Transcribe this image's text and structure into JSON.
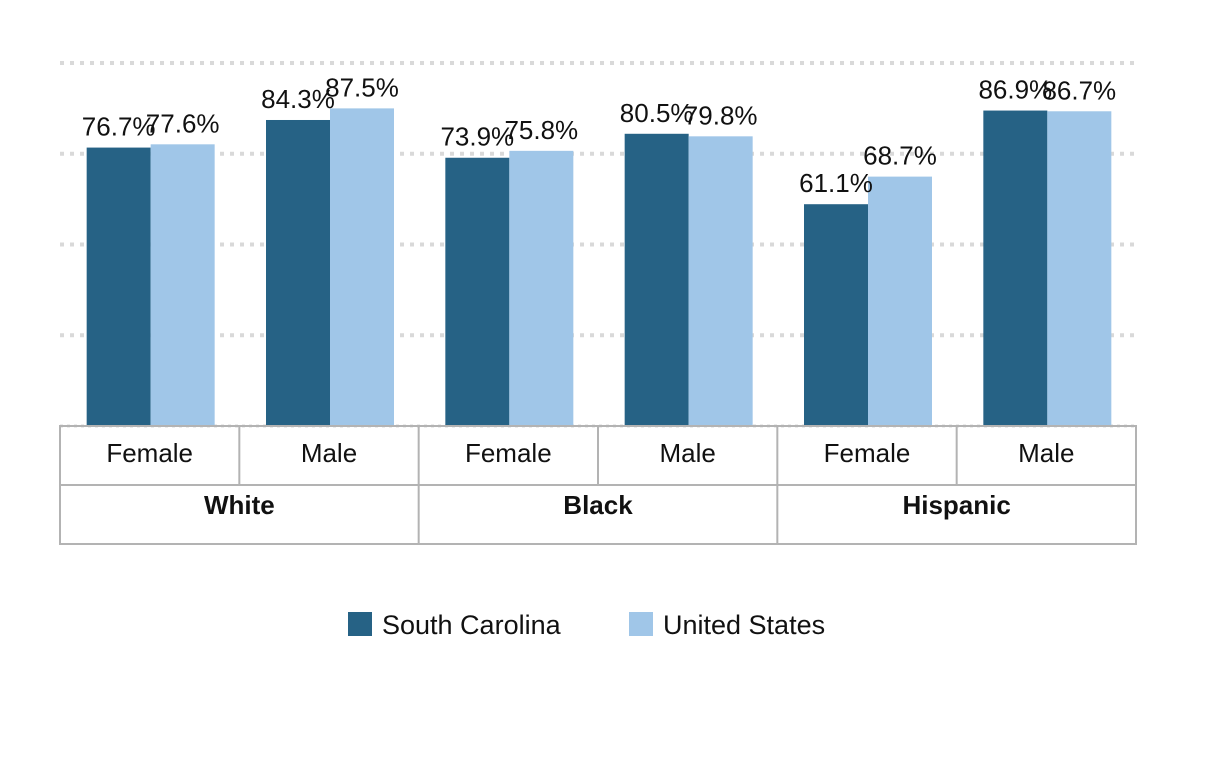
{
  "chart_data": {
    "type": "bar",
    "groups": [
      {
        "label": "White",
        "categories": [
          "Female",
          "Male"
        ]
      },
      {
        "label": "Black",
        "categories": [
          "Female",
          "Male"
        ]
      },
      {
        "label": "Hispanic",
        "categories": [
          "Female",
          "Male"
        ]
      }
    ],
    "categories": [
      "Female",
      "Male",
      "Female",
      "Male",
      "Female",
      "Male"
    ],
    "series": [
      {
        "name": "South Carolina",
        "color": "#266285",
        "values": [
          76.7,
          84.3,
          73.9,
          80.5,
          61.1,
          86.9
        ]
      },
      {
        "name": "United States",
        "color": "#a0c6e8",
        "values": [
          77.6,
          87.5,
          75.8,
          79.8,
          68.7,
          86.7
        ]
      }
    ],
    "value_labels": {
      "South Carolina": [
        "76.7%",
        "84.3%",
        "73.9%",
        "80.5%",
        "61.1%",
        "86.9%"
      ],
      "United States": [
        "77.6%",
        "87.5%",
        "75.8%",
        "79.8%",
        "68.7%",
        "86.7%"
      ]
    },
    "value_suffix": "%",
    "ylim": [
      0,
      100
    ],
    "grid": true,
    "legend": "bottom-center",
    "title": "",
    "xlabel": "",
    "ylabel": ""
  }
}
